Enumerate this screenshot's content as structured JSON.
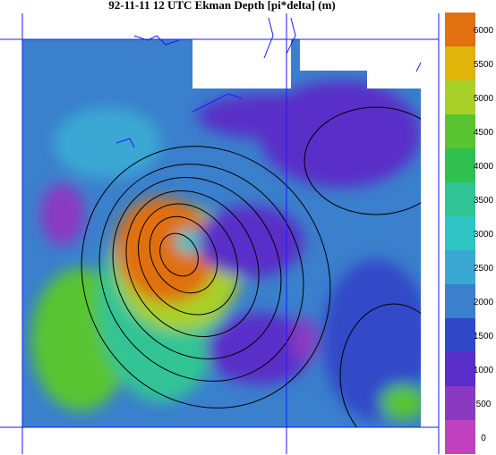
{
  "title": "92-11-11 12 UTC Ekman Depth [pi*delta] (m)",
  "colorbar": {
    "labels": [
      0,
      500,
      1000,
      1500,
      2000,
      2500,
      3000,
      3500,
      4000,
      4500,
      5000,
      5500,
      6000
    ],
    "colors": [
      "#c040c0",
      "#8a3ac0",
      "#5a2ec8",
      "#3048c8",
      "#3a80cc",
      "#3aa8d4",
      "#30c4c4",
      "#30c494",
      "#30c050",
      "#58c430",
      "#a8d028",
      "#e0b408",
      "#e07010"
    ]
  }
}
